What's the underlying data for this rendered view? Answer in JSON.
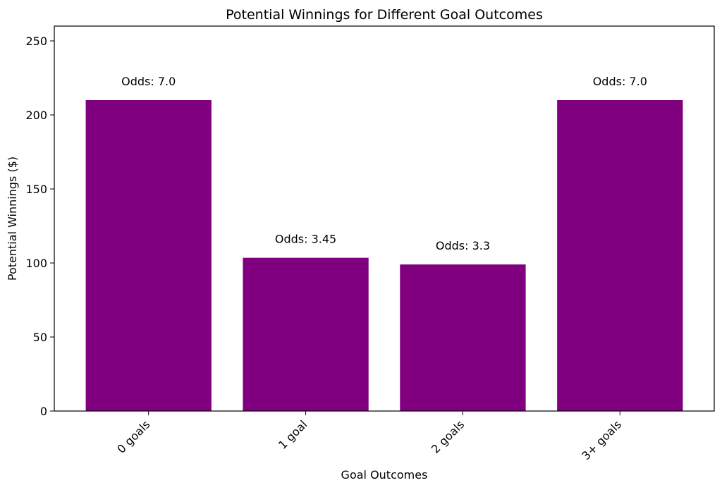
{
  "chart_data": {
    "type": "bar",
    "title": "Potential Winnings for Different Goal Outcomes",
    "xlabel": "Goal Outcomes",
    "ylabel": "Potential Winnings ($)",
    "categories": [
      "0 goals",
      "1 goal",
      "2 goals",
      "3+ goals"
    ],
    "values": [
      210,
      103.5,
      99,
      210
    ],
    "bar_labels": [
      "Odds: 7.0",
      "Odds: 3.45",
      "Odds: 3.3",
      "Odds: 7.0"
    ],
    "ylim": [
      0,
      260
    ],
    "yticks": [
      0,
      50,
      100,
      150,
      200,
      250
    ],
    "grid": false,
    "bar_color": "#800080"
  }
}
